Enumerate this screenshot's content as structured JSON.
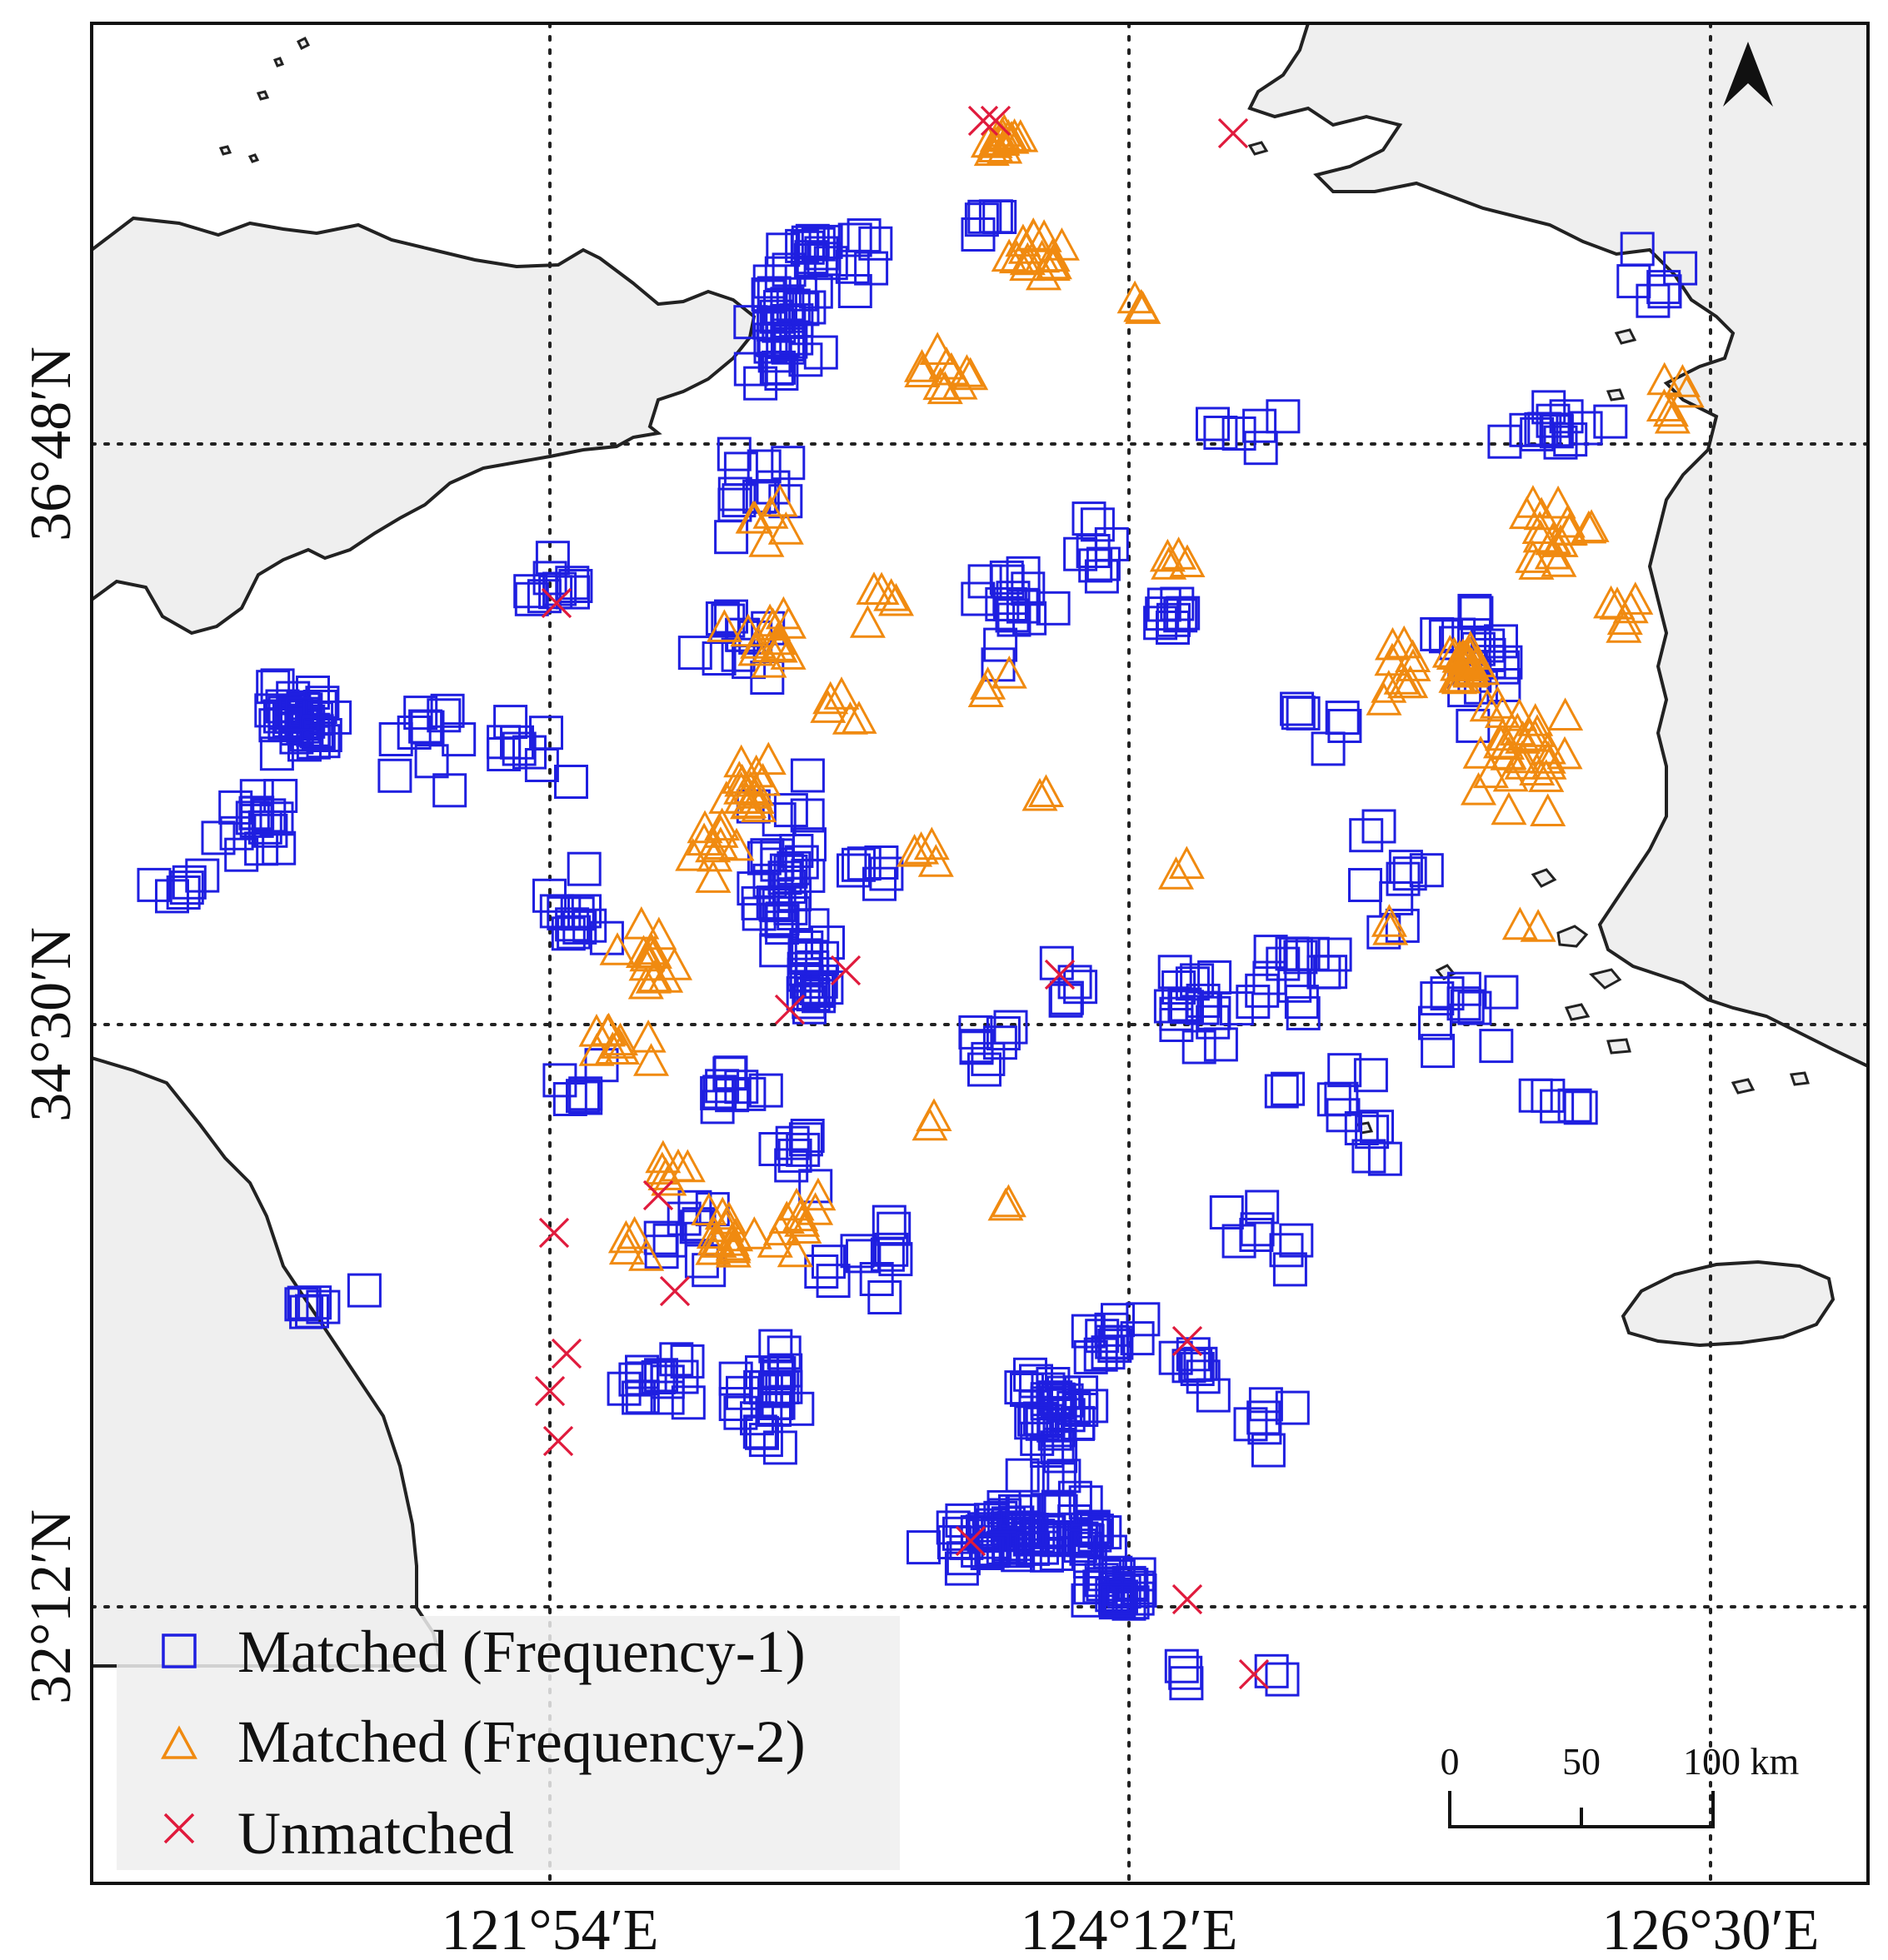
{
  "map": {
    "lon_ticks": [
      "121°54′E",
      "124°12′E",
      "126°30′E"
    ],
    "lat_ticks": [
      "32°12′N",
      "34°30′N",
      "36°48′N"
    ],
    "north_arrow": "north-arrow-icon",
    "scale_bar": {
      "labels": [
        "0",
        "50",
        "100 km"
      ]
    },
    "legend": [
      {
        "label": "Matched (Frequency-1)",
        "symbol": "square",
        "color": "#1f1fe0"
      },
      {
        "label": "Matched (Frequency-2)",
        "symbol": "triangle",
        "color": "#f08a10"
      },
      {
        "label": "Unmatched",
        "symbol": "cross",
        "color": "#e01a3c"
      }
    ],
    "colors": {
      "land": "#efefef",
      "coast": "#222222",
      "grid": "#222222"
    }
  }
}
